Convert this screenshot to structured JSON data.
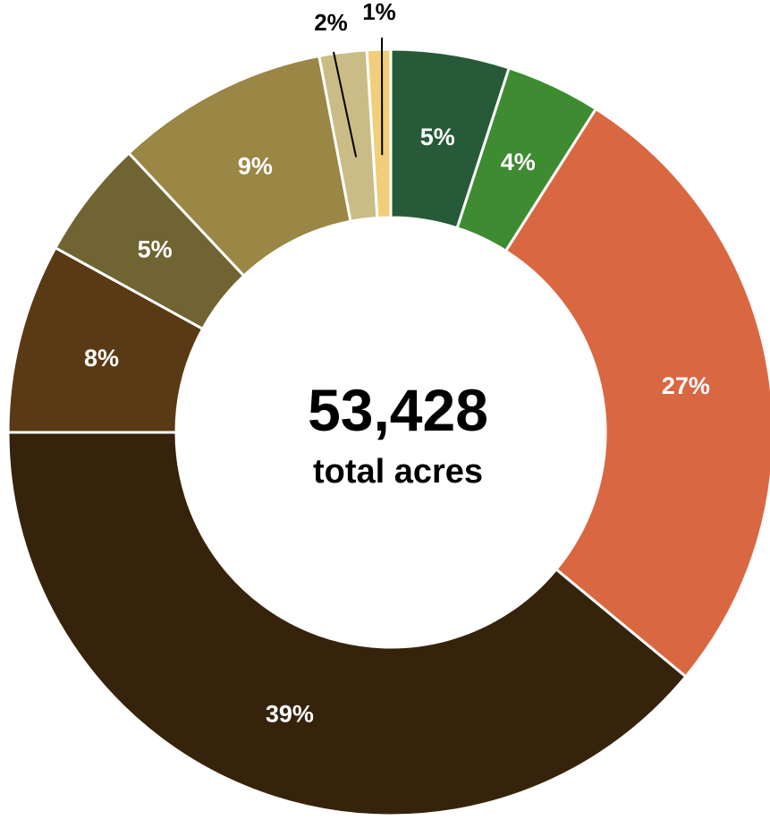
{
  "chart_data": {
    "type": "pie",
    "variant": "donut",
    "center_value": "53,428",
    "center_label": "total acres",
    "slice_order": "clockwise from top",
    "slices": [
      {
        "label": "5%",
        "value": 5,
        "color": "#275A38",
        "label_color": "#ffffff",
        "label_position": "inside"
      },
      {
        "label": "4%",
        "value": 4,
        "color": "#3F8B32",
        "label_color": "#ffffff",
        "label_position": "inside"
      },
      {
        "label": "27%",
        "value": 27,
        "color": "#D96842",
        "label_color": "#ffffff",
        "label_position": "inside"
      },
      {
        "label": "39%",
        "value": 39,
        "color": "#36230B",
        "label_color": "#ffffff",
        "label_position": "inside"
      },
      {
        "label": "8%",
        "value": 8,
        "color": "#5A3A14",
        "label_color": "#ffffff",
        "label_position": "inside"
      },
      {
        "label": "5%",
        "value": 5,
        "color": "#706432",
        "label_color": "#ffffff",
        "label_position": "inside"
      },
      {
        "label": "9%",
        "value": 9,
        "color": "#9A8645",
        "label_color": "#ffffff",
        "label_position": "inside"
      },
      {
        "label": "2%",
        "value": 2,
        "color": "#C9BC86",
        "label_color": "#000000",
        "label_position": "outside"
      },
      {
        "label": "1%",
        "value": 1,
        "color": "#F0CE7A",
        "label_color": "#000000",
        "label_position": "outside"
      }
    ]
  }
}
